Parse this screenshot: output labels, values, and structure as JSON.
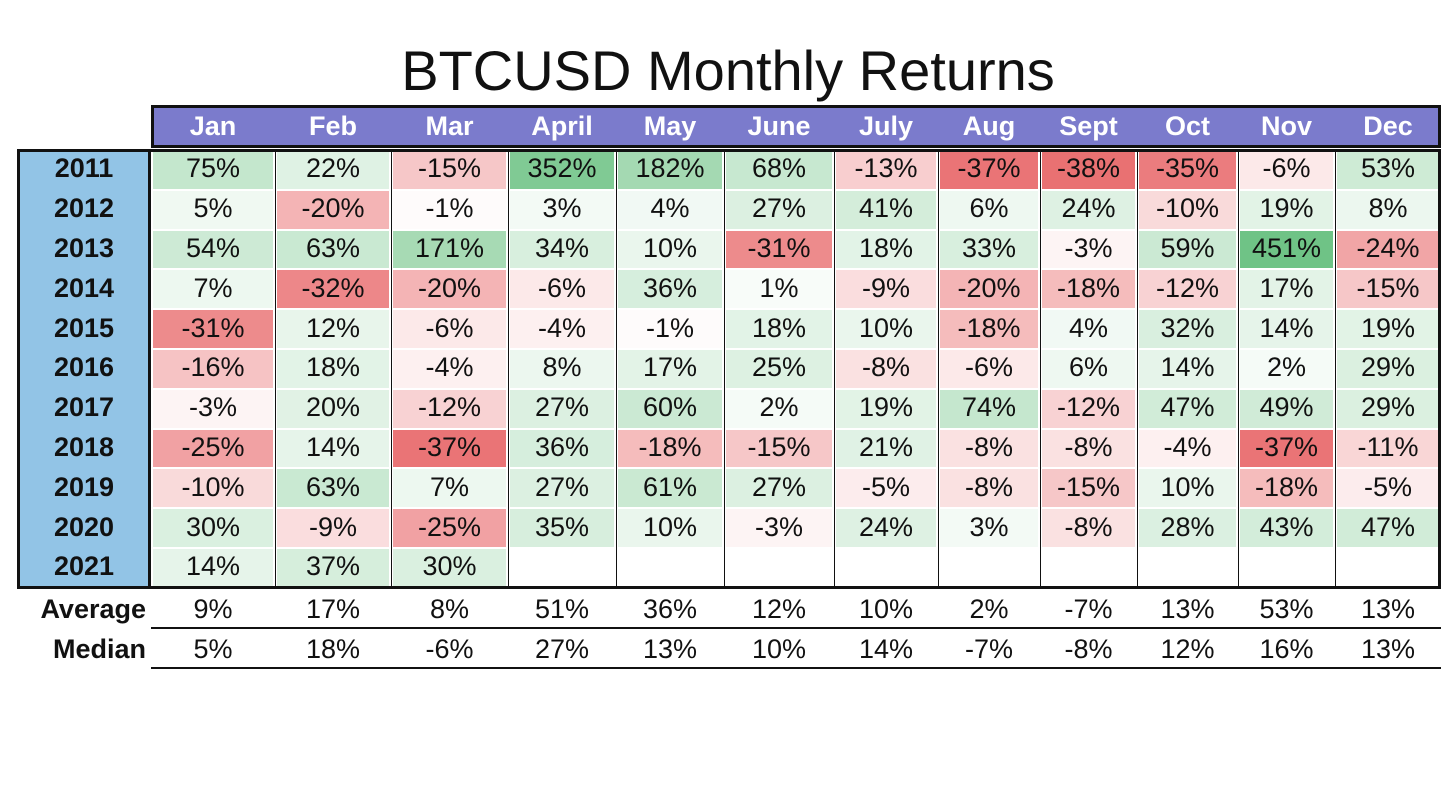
{
  "chart_data": {
    "type": "heatmap",
    "title": "BTCUSD Monthly Returns",
    "columns": [
      "Jan",
      "Feb",
      "Mar",
      "April",
      "May",
      "June",
      "July",
      "Aug",
      "Sept",
      "Oct",
      "Nov",
      "Dec"
    ],
    "rows": [
      "2011",
      "2012",
      "2013",
      "2014",
      "2015",
      "2016",
      "2017",
      "2018",
      "2019",
      "2020",
      "2021"
    ],
    "values": [
      [
        "75%",
        "22%",
        "-15%",
        "352%",
        "182%",
        "68%",
        "-13%",
        "-37%",
        "-38%",
        "-35%",
        "-6%",
        "53%"
      ],
      [
        "5%",
        "-20%",
        "-1%",
        "3%",
        "4%",
        "27%",
        "41%",
        "6%",
        "24%",
        "-10%",
        "19%",
        "8%"
      ],
      [
        "54%",
        "63%",
        "171%",
        "34%",
        "10%",
        "-31%",
        "18%",
        "33%",
        "-3%",
        "59%",
        "451%",
        "-24%"
      ],
      [
        "7%",
        "-32%",
        "-20%",
        "-6%",
        "36%",
        "1%",
        "-9%",
        "-20%",
        "-18%",
        "-12%",
        "17%",
        "-15%"
      ],
      [
        "-31%",
        "12%",
        "-6%",
        "-4%",
        "-1%",
        "18%",
        "10%",
        "-18%",
        "4%",
        "32%",
        "14%",
        "19%"
      ],
      [
        "-16%",
        "18%",
        "-4%",
        "8%",
        "17%",
        "25%",
        "-8%",
        "-6%",
        "6%",
        "14%",
        "2%",
        "29%"
      ],
      [
        "-3%",
        "20%",
        "-12%",
        "27%",
        "60%",
        "2%",
        "19%",
        "74%",
        "-12%",
        "47%",
        "49%",
        "29%"
      ],
      [
        "-25%",
        "14%",
        "-37%",
        "36%",
        "-18%",
        "-15%",
        "21%",
        "-8%",
        "-8%",
        "-4%",
        "-37%",
        "-11%"
      ],
      [
        "-10%",
        "63%",
        "7%",
        "27%",
        "61%",
        "27%",
        "-5%",
        "-8%",
        "-15%",
        "10%",
        "-18%",
        "-5%"
      ],
      [
        "30%",
        "-9%",
        "-25%",
        "35%",
        "10%",
        "-3%",
        "24%",
        "3%",
        "-8%",
        "28%",
        "43%",
        "47%"
      ],
      [
        "14%",
        "37%",
        "30%",
        null,
        null,
        null,
        null,
        null,
        null,
        null,
        null,
        null
      ]
    ],
    "summary": [
      {
        "label": "Average",
        "values": [
          "9%",
          "17%",
          "8%",
          "51%",
          "36%",
          "12%",
          "10%",
          "2%",
          "-7%",
          "13%",
          "53%",
          "13%"
        ]
      },
      {
        "label": "Median",
        "values": [
          "5%",
          "18%",
          "-6%",
          "27%",
          "13%",
          "10%",
          "14%",
          "-7%",
          "-8%",
          "12%",
          "16%",
          "13%"
        ]
      }
    ],
    "colors": {
      "header": "#7b7bcc",
      "year_column": "#92c4e6",
      "positive": "#63be7b",
      "negative": "#e8696b",
      "neutral": "#ffffff"
    }
  }
}
